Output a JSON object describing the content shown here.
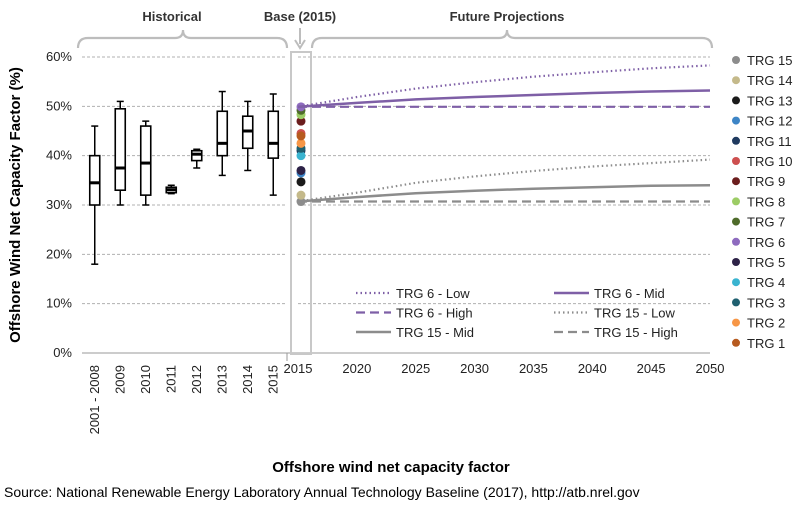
{
  "colors": {
    "trg6": "#7e5fa6",
    "trg15": "#8c8c8c",
    "grid": "#b0b0b0",
    "bracket": "#bdbdbd",
    "box": "#000000"
  },
  "chart_data": {
    "type": "box-and-line",
    "title": "",
    "ylabel": "Offshore Wind Net Capacity Factor (%)",
    "xlabel": "Offshore wind net capacity factor",
    "source": "Source:  National Renewable Energy Laboratory Annual Technology Baseline (2017), http://atb.nrel.gov",
    "ylim": [
      0,
      60
    ],
    "yticks": [
      "0%",
      "10%",
      "20%",
      "30%",
      "40%",
      "50%",
      "60%"
    ],
    "grid": true,
    "sections": {
      "historical": "Historical",
      "base": "Base (2015)",
      "future": "Future Projections"
    },
    "historical": {
      "categories": [
        "2001 - 2008",
        "2009",
        "2010",
        "2011",
        "2012",
        "2013",
        "2014",
        "2015"
      ],
      "boxes": [
        {
          "min": 18,
          "q1": 30,
          "median": 34.5,
          "q3": 40,
          "max": 46
        },
        {
          "min": 30,
          "q1": 33,
          "median": 37.5,
          "q3": 49.5,
          "max": 51
        },
        {
          "min": 30,
          "q1": 32,
          "median": 38.5,
          "q3": 46,
          "max": 47
        },
        {
          "min": 32.3,
          "q1": 32.5,
          "median": 33.1,
          "q3": 33.6,
          "max": 34
        },
        {
          "min": 37.5,
          "q1": 39,
          "median": 40.3,
          "q3": 41,
          "max": 41.3
        },
        {
          "min": 36,
          "q1": 40,
          "median": 42.5,
          "q3": 49,
          "max": 53
        },
        {
          "min": 37,
          "q1": 41.5,
          "median": 45,
          "q3": 48,
          "max": 51
        },
        {
          "min": 32,
          "q1": 39.5,
          "median": 42.5,
          "q3": 49,
          "max": 52.5
        }
      ]
    },
    "base_points": [
      {
        "name": "TRG 15",
        "value": 30.7,
        "color": "#8c8c8c"
      },
      {
        "name": "TRG 14",
        "value": 32.0,
        "color": "#c4b98a"
      },
      {
        "name": "TRG 13",
        "value": 34.7,
        "color": "#1a1a1a"
      },
      {
        "name": "TRG 12",
        "value": 36.5,
        "color": "#3d85c6"
      },
      {
        "name": "TRG 11",
        "value": 41.0,
        "color": "#1f3a5f"
      },
      {
        "name": "TRG 10",
        "value": 44.5,
        "color": "#cd4f4f"
      },
      {
        "name": "TRG 9",
        "value": 47.0,
        "color": "#6b1d1d"
      },
      {
        "name": "TRG 8",
        "value": 48.3,
        "color": "#9ccc65"
      },
      {
        "name": "TRG 7",
        "value": 49.2,
        "color": "#4e6b2a"
      },
      {
        "name": "TRG 6",
        "value": 49.9,
        "color": "#8e6bbf"
      },
      {
        "name": "TRG 5",
        "value": 37.0,
        "color": "#2d2247"
      },
      {
        "name": "TRG 4",
        "value": 40.0,
        "color": "#3ab4d0"
      },
      {
        "name": "TRG 3",
        "value": 41.5,
        "color": "#1f6070"
      },
      {
        "name": "TRG 2",
        "value": 42.5,
        "color": "#f79646"
      },
      {
        "name": "TRG 1",
        "value": 44.0,
        "color": "#b65a1f"
      }
    ],
    "future": {
      "x": [
        2015,
        2020,
        2025,
        2030,
        2035,
        2040,
        2045,
        2050
      ],
      "xticks": [
        "2015",
        "2020",
        "2025",
        "2030",
        "2035",
        "2040",
        "2045",
        "2050"
      ],
      "series": [
        {
          "name": "TRG 6 - Low",
          "color": "#7e5fa6",
          "style": "dotted",
          "values": [
            49.9,
            51.9,
            53.6,
            54.9,
            56.0,
            56.9,
            57.7,
            58.3
          ]
        },
        {
          "name": "TRG 6 - Mid",
          "color": "#7e5fa6",
          "style": "solid",
          "values": [
            49.9,
            50.7,
            51.4,
            51.9,
            52.3,
            52.7,
            53.0,
            53.2
          ]
        },
        {
          "name": "TRG 6 - High",
          "color": "#7e5fa6",
          "style": "dashed",
          "values": [
            49.9,
            49.9,
            49.9,
            49.9,
            49.9,
            49.9,
            49.9,
            49.9
          ]
        },
        {
          "name": "TRG 15 - Low",
          "color": "#8c8c8c",
          "style": "dotted",
          "values": [
            30.7,
            32.5,
            34.5,
            35.8,
            36.9,
            37.8,
            38.5,
            39.2
          ]
        },
        {
          "name": "TRG 15 - Mid",
          "color": "#8c8c8c",
          "style": "solid",
          "values": [
            30.7,
            31.6,
            32.4,
            32.9,
            33.3,
            33.6,
            33.9,
            34.0
          ]
        },
        {
          "name": "TRG 15 - High",
          "color": "#8c8c8c",
          "style": "dashed",
          "values": [
            30.7,
            30.7,
            30.7,
            30.7,
            30.7,
            30.7,
            30.7,
            30.7
          ]
        }
      ]
    },
    "legend": {
      "lines": [
        "TRG 6 - Low",
        "TRG 6 - Mid",
        "TRG 6 - High",
        "TRG 15 - Low",
        "TRG 15 - Mid",
        "TRG 15 - High"
      ],
      "points": [
        "TRG 15",
        "TRG 14",
        "TRG 13",
        "TRG 12",
        "TRG 11",
        "TRG 10",
        "TRG 9",
        "TRG 8",
        "TRG 7",
        "TRG 6",
        "TRG 5",
        "TRG 4",
        "TRG 3",
        "TRG 2",
        "TRG 1"
      ]
    }
  }
}
